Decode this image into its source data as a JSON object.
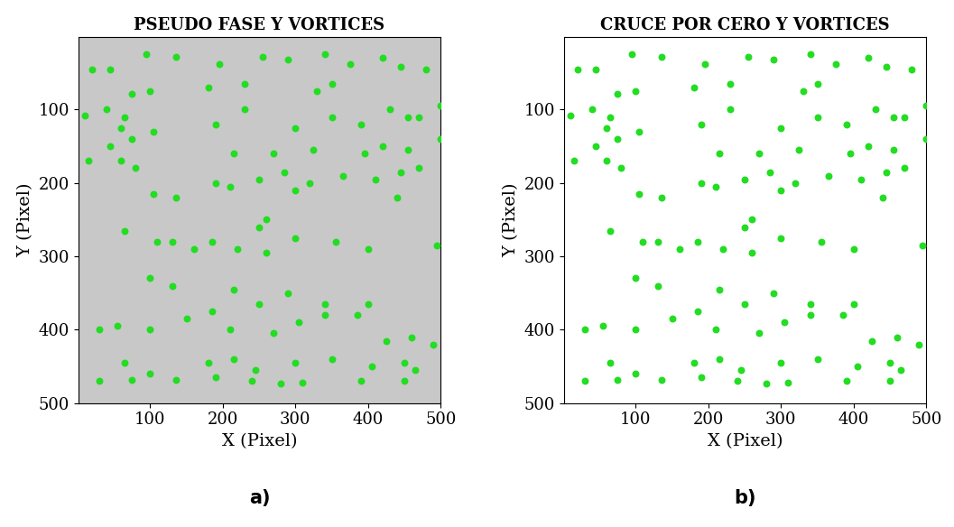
{
  "chart_data": [
    {
      "type": "scatter",
      "title": "PSEUDO FASE Y VORTICES",
      "caption": "a)",
      "x_label": "X (Pixel)",
      "y_label": "Y (Pixel)",
      "xlim": [
        1,
        500
      ],
      "ylim": [
        500,
        1
      ],
      "xticks": [
        100,
        200,
        300,
        400,
        500
      ],
      "yticks": [
        100,
        200,
        300,
        400,
        500
      ],
      "color": "#22dd22",
      "marker": "circle",
      "x": [
        20,
        45,
        95,
        135,
        195,
        255,
        290,
        340,
        375,
        420,
        445,
        480,
        75,
        100,
        180,
        230,
        330,
        350,
        10,
        40,
        65,
        60,
        105,
        190,
        230,
        300,
        350,
        390,
        430,
        455,
        470,
        500,
        45,
        75,
        215,
        270,
        325,
        395,
        420,
        455,
        500,
        15,
        60,
        80,
        105,
        135,
        190,
        250,
        285,
        320,
        365,
        410,
        445,
        470,
        210,
        300,
        440,
        260,
        250,
        65,
        110,
        130,
        160,
        185,
        220,
        260,
        300,
        355,
        400,
        495,
        100,
        130,
        215,
        250,
        290,
        340,
        400,
        30,
        55,
        100,
        150,
        185,
        210,
        270,
        305,
        340,
        385,
        425,
        460,
        490,
        65,
        100,
        180,
        215,
        245,
        300,
        350,
        405,
        450,
        465,
        30,
        75,
        135,
        190,
        240,
        280,
        310,
        390,
        450
      ],
      "values": [
        45,
        45,
        25,
        28,
        38,
        28,
        32,
        25,
        38,
        30,
        42,
        45,
        78,
        75,
        70,
        65,
        75,
        65,
        108,
        100,
        110,
        125,
        130,
        120,
        100,
        125,
        110,
        120,
        100,
        110,
        110,
        95,
        150,
        140,
        160,
        160,
        155,
        160,
        150,
        155,
        140,
        170,
        170,
        180,
        215,
        220,
        200,
        195,
        185,
        200,
        190,
        195,
        185,
        180,
        205,
        210,
        220,
        250,
        260,
        265,
        280,
        280,
        290,
        280,
        290,
        295,
        275,
        280,
        290,
        285,
        330,
        340,
        345,
        365,
        350,
        365,
        365,
        400,
        395,
        400,
        385,
        375,
        400,
        405,
        390,
        380,
        380,
        415,
        410,
        420,
        445,
        460,
        445,
        440,
        455,
        445,
        440,
        450,
        445,
        455,
        470,
        468,
        468,
        465,
        470,
        473,
        472,
        470,
        470
      ]
    },
    {
      "type": "scatter",
      "title": "CRUCE POR CERO Y VORTICES",
      "caption": "b)",
      "x_label": "X (Pixel)",
      "y_label": "Y (Pixel)",
      "xlim": [
        1,
        500
      ],
      "ylim": [
        500,
        1
      ],
      "xticks": [
        100,
        200,
        300,
        400,
        500
      ],
      "yticks": [
        100,
        200,
        300,
        400,
        500
      ],
      "color": "#22dd22",
      "marker": "circle",
      "x": [
        20,
        45,
        95,
        135,
        195,
        255,
        290,
        340,
        375,
        420,
        445,
        480,
        75,
        100,
        180,
        230,
        330,
        350,
        10,
        40,
        65,
        60,
        105,
        190,
        230,
        300,
        350,
        390,
        430,
        455,
        470,
        500,
        45,
        75,
        215,
        270,
        325,
        395,
        420,
        455,
        500,
        15,
        60,
        80,
        105,
        135,
        190,
        250,
        285,
        320,
        365,
        410,
        445,
        470,
        210,
        300,
        440,
        260,
        250,
        65,
        110,
        130,
        160,
        185,
        220,
        260,
        300,
        355,
        400,
        495,
        100,
        130,
        215,
        250,
        290,
        340,
        400,
        30,
        55,
        100,
        150,
        185,
        210,
        270,
        305,
        340,
        385,
        425,
        460,
        490,
        65,
        100,
        180,
        215,
        245,
        300,
        350,
        405,
        450,
        465,
        30,
        75,
        135,
        190,
        240,
        280,
        310,
        390,
        450
      ],
      "values": [
        45,
        45,
        25,
        28,
        38,
        28,
        32,
        25,
        38,
        30,
        42,
        45,
        78,
        75,
        70,
        65,
        75,
        65,
        108,
        100,
        110,
        125,
        130,
        120,
        100,
        125,
        110,
        120,
        100,
        110,
        110,
        95,
        150,
        140,
        160,
        160,
        155,
        160,
        150,
        155,
        140,
        170,
        170,
        180,
        215,
        220,
        200,
        195,
        185,
        200,
        190,
        195,
        185,
        180,
        205,
        210,
        220,
        250,
        260,
        265,
        280,
        280,
        290,
        280,
        290,
        295,
        275,
        280,
        290,
        285,
        330,
        340,
        345,
        365,
        350,
        365,
        365,
        400,
        395,
        400,
        385,
        375,
        400,
        405,
        390,
        380,
        380,
        415,
        410,
        420,
        445,
        460,
        445,
        440,
        455,
        445,
        440,
        450,
        445,
        455,
        470,
        468,
        468,
        465,
        470,
        473,
        472,
        470,
        470
      ]
    }
  ]
}
